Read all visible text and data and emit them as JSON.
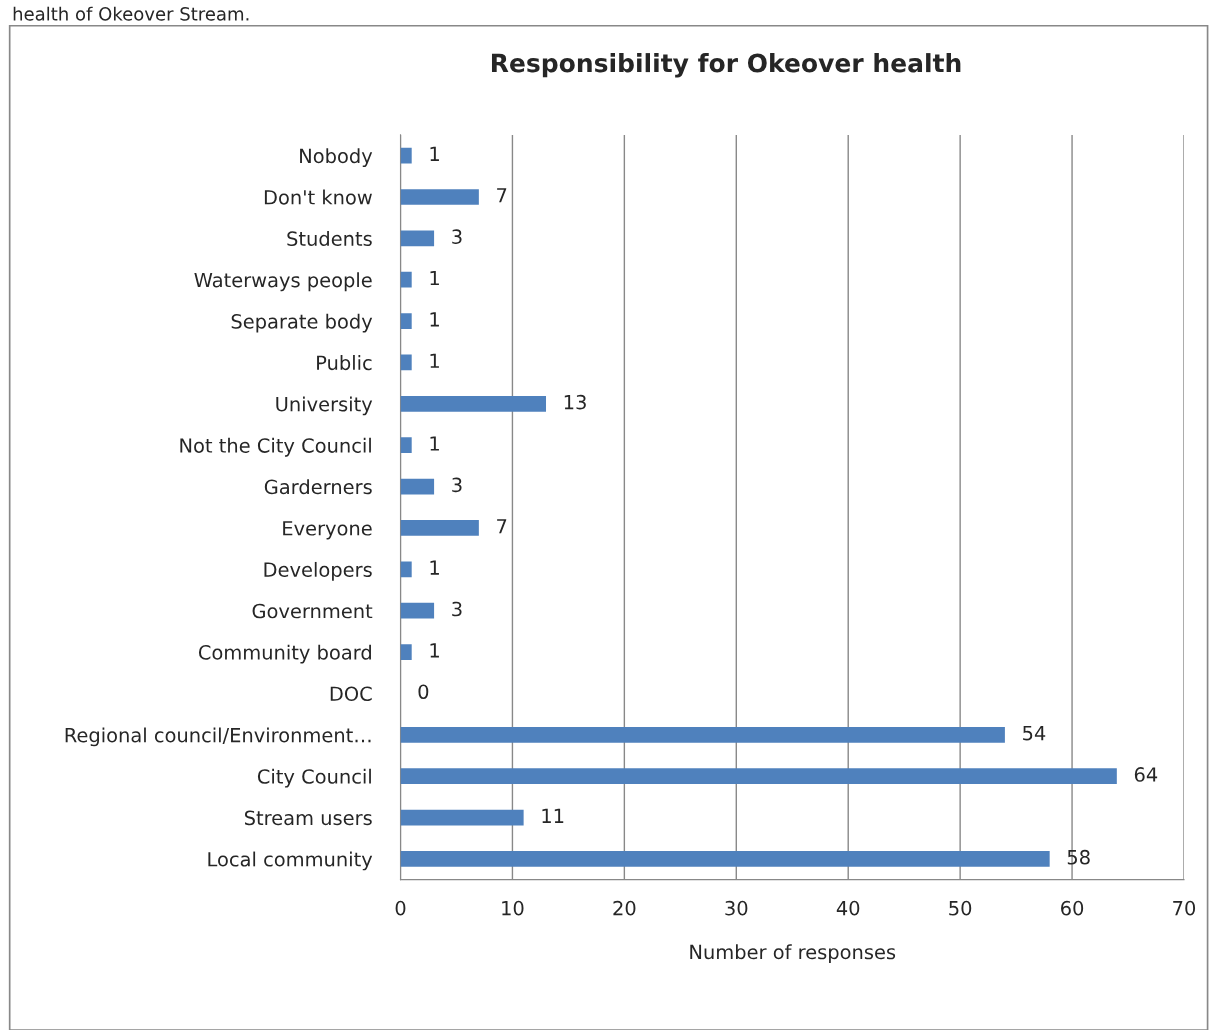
{
  "chart_data": {
    "type": "bar",
    "orientation": "horizontal",
    "title": "Responsibility for Okeover health",
    "xlabel": "Number of responses",
    "annotations": [
      "health of Okeover Stream."
    ],
    "categories": [
      "Nobody",
      "Don't know",
      "Students",
      "Waterways people",
      "Separate body",
      "Public",
      "University",
      "Not the City Council",
      "Garderners",
      "Everyone",
      "Developers",
      "Government",
      "Community board",
      "DOC",
      "Regional council/Environment…",
      "City Council",
      "Stream users",
      "Local community"
    ],
    "values": [
      1,
      7,
      3,
      1,
      1,
      1,
      13,
      1,
      3,
      7,
      1,
      3,
      1,
      0,
      54,
      64,
      11,
      58
    ],
    "color": "#4f81bd",
    "xlim": [
      0,
      70
    ],
    "xticks": [
      0,
      10,
      20,
      30,
      40,
      50,
      60,
      70
    ],
    "grid": "x",
    "data_labels": true,
    "legend": false
  }
}
